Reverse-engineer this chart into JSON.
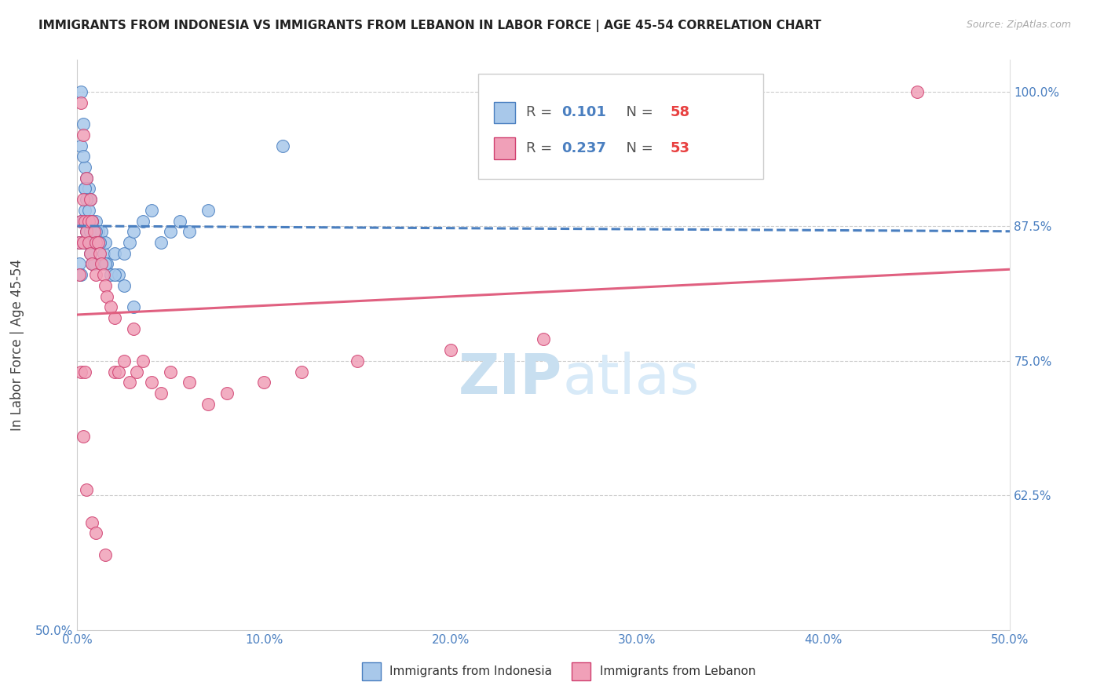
{
  "title": "IMMIGRANTS FROM INDONESIA VS IMMIGRANTS FROM LEBANON IN LABOR FORCE | AGE 45-54 CORRELATION CHART",
  "source": "Source: ZipAtlas.com",
  "ylabel": "In Labor Force | Age 45-54",
  "xlim": [
    0.0,
    0.5
  ],
  "ylim": [
    0.5,
    1.03
  ],
  "color_indonesia": "#a8c8ea",
  "color_lebanon": "#f0a0b8",
  "edge_indonesia": "#4a7fc0",
  "edge_lebanon": "#d04070",
  "trendline_indonesia_color": "#4a7fc0",
  "trendline_lebanon_color": "#e06080",
  "watermark_color": "#daeaf8",
  "axis_label_color": "#4a7fc0",
  "r_indonesia": "0.101",
  "n_indonesia": "58",
  "r_lebanon": "0.237",
  "n_lebanon": "53",
  "legend_r_color": "#4a7fc0",
  "legend_n_color": "#e84040",
  "ytick_right": [
    0.625,
    0.75,
    0.875,
    1.0
  ],
  "ytick_right_labels": [
    "62.5%",
    "75.0%",
    "87.5%",
    "100.0%"
  ],
  "xtick_vals": [
    0.0,
    0.1,
    0.2,
    0.3,
    0.4,
    0.5
  ],
  "xtick_labels": [
    "0.0%",
    "10.0%",
    "20.0%",
    "30.0%",
    "40.0%",
    "50.0%"
  ],
  "indonesia_x": [
    0.001,
    0.001,
    0.002,
    0.002,
    0.002,
    0.003,
    0.003,
    0.003,
    0.004,
    0.004,
    0.004,
    0.005,
    0.005,
    0.005,
    0.006,
    0.006,
    0.007,
    0.007,
    0.007,
    0.008,
    0.008,
    0.008,
    0.009,
    0.009,
    0.01,
    0.01,
    0.011,
    0.012,
    0.013,
    0.014,
    0.015,
    0.016,
    0.018,
    0.02,
    0.022,
    0.025,
    0.028,
    0.03,
    0.035,
    0.04,
    0.045,
    0.05,
    0.055,
    0.06,
    0.07,
    0.11,
    0.002,
    0.003,
    0.004,
    0.005,
    0.006,
    0.008,
    0.01,
    0.012,
    0.015,
    0.02,
    0.025,
    0.03
  ],
  "indonesia_y": [
    0.86,
    0.84,
    1.0,
    0.88,
    0.83,
    0.97,
    0.88,
    0.86,
    0.93,
    0.91,
    0.89,
    0.92,
    0.88,
    0.87,
    0.91,
    0.86,
    0.9,
    0.87,
    0.85,
    0.88,
    0.86,
    0.84,
    0.87,
    0.84,
    0.88,
    0.86,
    0.87,
    0.86,
    0.87,
    0.85,
    0.86,
    0.84,
    0.83,
    0.85,
    0.83,
    0.85,
    0.86,
    0.87,
    0.88,
    0.89,
    0.86,
    0.87,
    0.88,
    0.87,
    0.89,
    0.95,
    0.95,
    0.94,
    0.91,
    0.9,
    0.89,
    0.88,
    0.87,
    0.86,
    0.84,
    0.83,
    0.82,
    0.8
  ],
  "lebanon_x": [
    0.001,
    0.001,
    0.002,
    0.002,
    0.002,
    0.003,
    0.003,
    0.003,
    0.004,
    0.004,
    0.005,
    0.005,
    0.006,
    0.006,
    0.007,
    0.007,
    0.008,
    0.008,
    0.009,
    0.01,
    0.01,
    0.011,
    0.012,
    0.013,
    0.014,
    0.015,
    0.016,
    0.018,
    0.02,
    0.02,
    0.022,
    0.025,
    0.028,
    0.03,
    0.032,
    0.035,
    0.04,
    0.045,
    0.05,
    0.06,
    0.07,
    0.08,
    0.1,
    0.12,
    0.15,
    0.2,
    0.25,
    0.45,
    0.003,
    0.005,
    0.008,
    0.01,
    0.015
  ],
  "lebanon_y": [
    0.86,
    0.83,
    0.99,
    0.88,
    0.74,
    0.96,
    0.9,
    0.86,
    0.88,
    0.74,
    0.92,
    0.87,
    0.88,
    0.86,
    0.9,
    0.85,
    0.88,
    0.84,
    0.87,
    0.86,
    0.83,
    0.86,
    0.85,
    0.84,
    0.83,
    0.82,
    0.81,
    0.8,
    0.79,
    0.74,
    0.74,
    0.75,
    0.73,
    0.78,
    0.74,
    0.75,
    0.73,
    0.72,
    0.74,
    0.73,
    0.71,
    0.72,
    0.73,
    0.74,
    0.75,
    0.76,
    0.77,
    1.0,
    0.68,
    0.63,
    0.6,
    0.59,
    0.57
  ]
}
